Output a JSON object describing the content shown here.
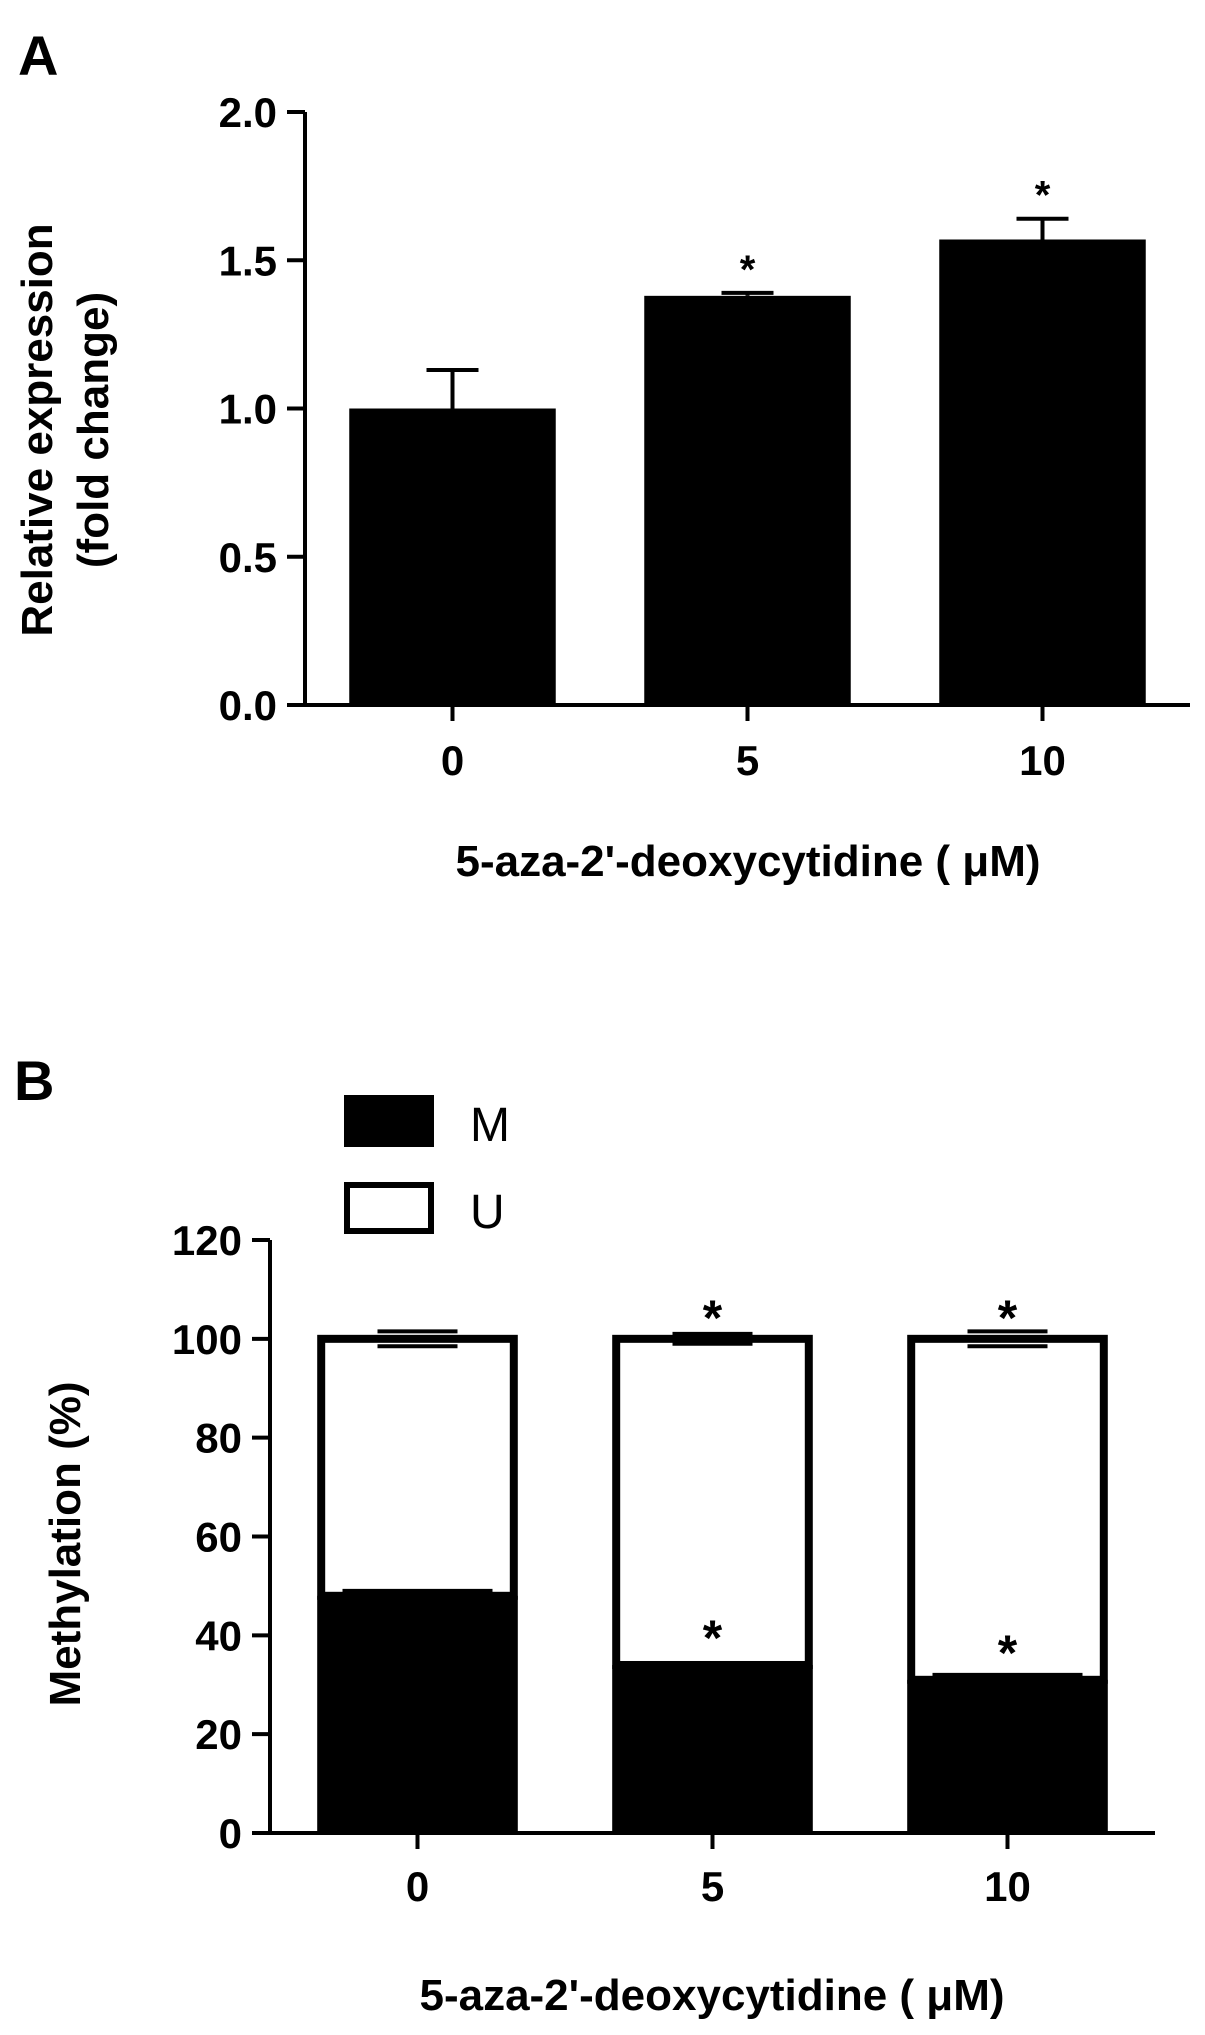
{
  "chart_data": [
    {
      "panel_label": "A",
      "type": "bar",
      "categories": [
        "0",
        "5",
        "10"
      ],
      "values": [
        1.0,
        1.38,
        1.57
      ],
      "errors": [
        0.13,
        0.01,
        0.07
      ],
      "significance": [
        "",
        "*",
        "*"
      ],
      "ylabel_line1": "Relative expression",
      "ylabel_line2": "(fold change)",
      "xlabel": "5-aza-2'-deoxycytidine ( μM)",
      "ylim": [
        0,
        2.0
      ],
      "yticks": [
        "0.0",
        "0.5",
        "1.0",
        "1.5",
        "2.0"
      ],
      "grid": false
    },
    {
      "panel_label": "B",
      "type": "bar",
      "stacked": true,
      "categories": [
        "0",
        "5",
        "10"
      ],
      "series": [
        {
          "name": "M",
          "values": [
            48,
            34,
            31
          ],
          "errors": [
            1,
            0,
            1
          ],
          "fill": "#000000",
          "significance": [
            "",
            "*",
            "*"
          ]
        },
        {
          "name": "U",
          "values": [
            52,
            66,
            69
          ],
          "errors": [
            1.5,
            1,
            1.5
          ],
          "fill": "#ffffff",
          "significance": [
            "",
            "*",
            "*"
          ]
        }
      ],
      "ylabel": "Methylation (%)",
      "xlabel": "5-aza-2'-deoxycytidine ( μM)",
      "ylim": [
        0,
        120
      ],
      "yticks": [
        "0",
        "20",
        "40",
        "60",
        "80",
        "100",
        "120"
      ],
      "legend_position": "top-left",
      "grid": false
    }
  ]
}
